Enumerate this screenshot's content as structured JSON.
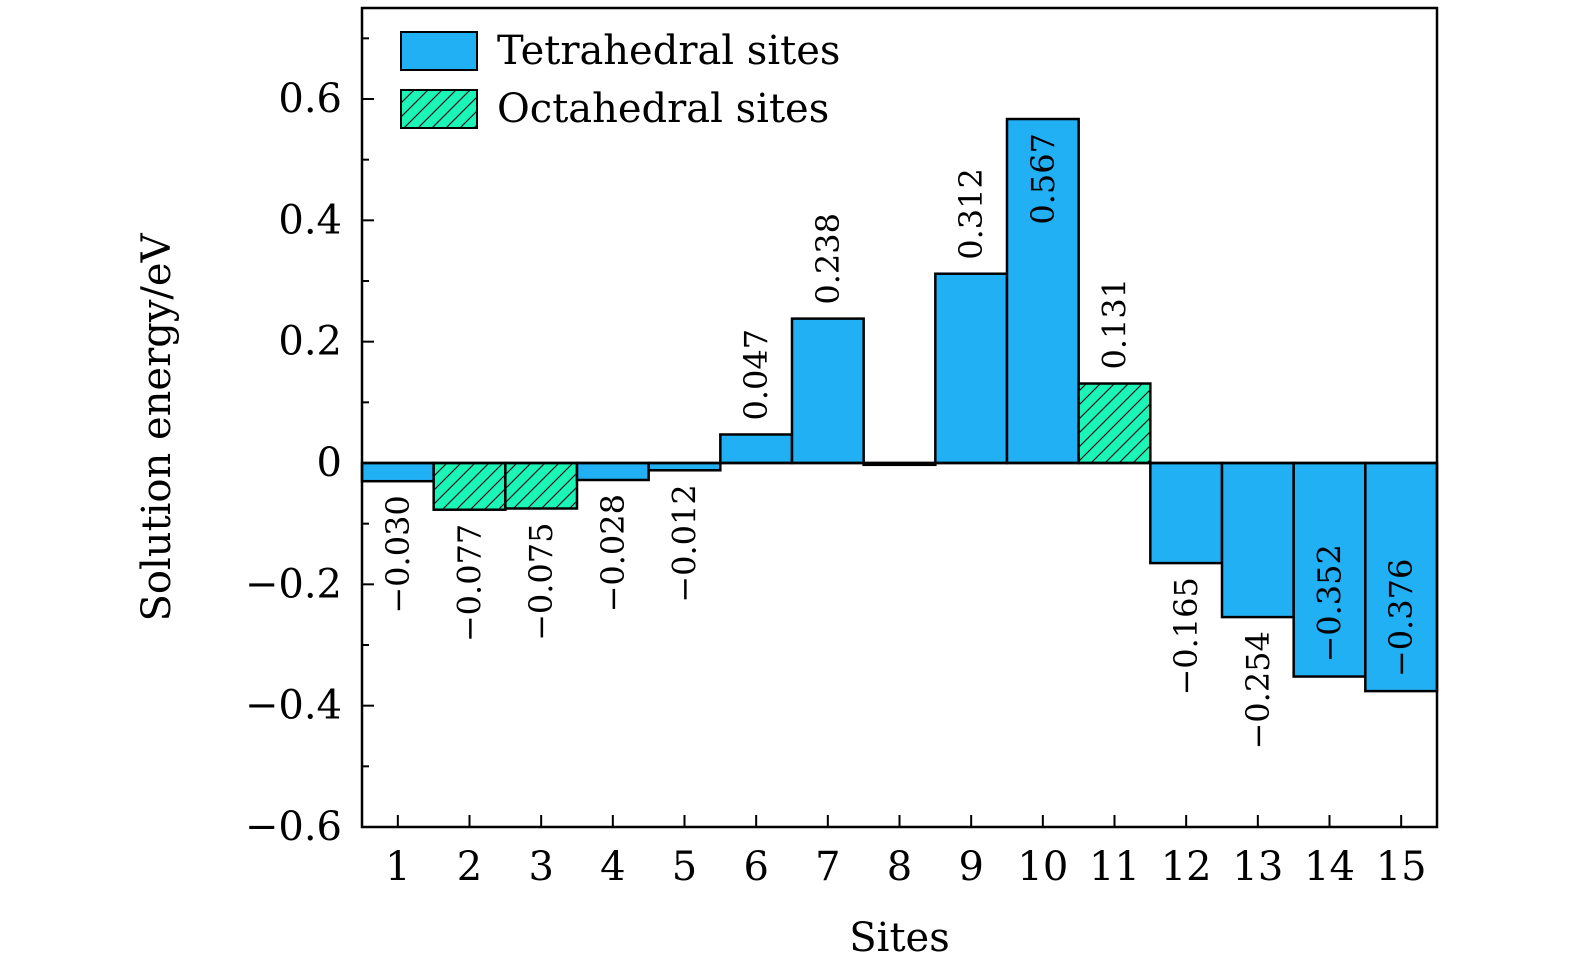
{
  "chart_data": {
    "type": "bar",
    "xlabel": "Sites",
    "ylabel": "Solution energy/eV",
    "ylim": [
      -0.6,
      0.75
    ],
    "yticks": [
      0.6,
      0.4,
      0.2,
      0,
      -0.2,
      -0.4,
      -0.6
    ],
    "ytick_labels": [
      "0.6",
      "0.4",
      "0.2",
      "0",
      "−0.2",
      "−0.4",
      "−0.6"
    ],
    "categories": [
      "1",
      "2",
      "3",
      "4",
      "5",
      "6",
      "7",
      "8",
      "9",
      "10",
      "11",
      "12",
      "13",
      "14",
      "15"
    ],
    "values": [
      -0.03,
      -0.077,
      -0.075,
      -0.028,
      -0.012,
      0.047,
      0.238,
      -0.003,
      0.312,
      0.567,
      0.131,
      -0.165,
      -0.254,
      -0.352,
      -0.376
    ],
    "site_types": [
      "tetra",
      "octa",
      "octa",
      "tetra",
      "tetra",
      "tetra",
      "tetra",
      "tetra",
      "tetra",
      "tetra",
      "octa",
      "tetra",
      "tetra",
      "tetra",
      "tetra"
    ],
    "data_labels": [
      "−0.030",
      "−0.077",
      "−0.075",
      "−0.028",
      "−0.012",
      "0.047",
      "0.238",
      "",
      "0.312",
      "0.567",
      "0.131",
      "−0.165",
      "−0.254",
      "−0.352",
      "−0.376"
    ],
    "label_inside": [
      false,
      false,
      false,
      false,
      false,
      false,
      false,
      false,
      false,
      true,
      false,
      false,
      false,
      true,
      true
    ],
    "legend": {
      "position": "top-left",
      "tetra_label": "Tetrahedral sites",
      "octa_label": "Octahedral sites"
    },
    "colors": {
      "tetra": "#22b0f5",
      "octa": "#1cf5b8",
      "hatch": "#1a1a1a"
    }
  }
}
